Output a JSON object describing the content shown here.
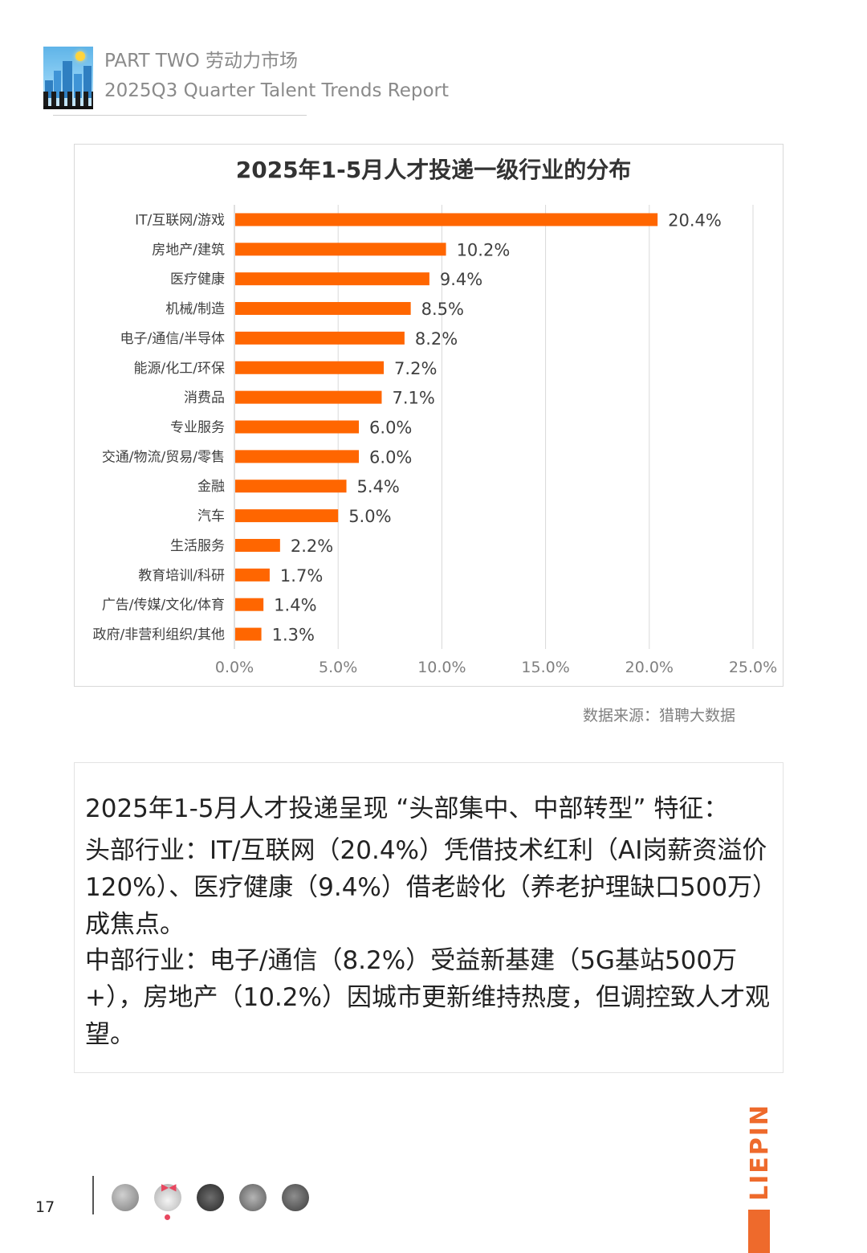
{
  "header": {
    "line1": "PART TWO 劳动力市场",
    "line2": "2025Q3 Quarter Talent Trends Report"
  },
  "chart_data": {
    "type": "bar",
    "orientation": "horizontal",
    "title": "2025年1-5月人才投递一级行业的分布",
    "categories": [
      "IT/互联网/游戏",
      "房地产/建筑",
      "医疗健康",
      "机械/制造",
      "电子/通信/半导体",
      "能源/化工/环保",
      "消费品",
      "专业服务",
      "交通/物流/贸易/零售",
      "金融",
      "汽车",
      "生活服务",
      "教育培训/科研",
      "广告/传媒/文化/体育",
      "政府/非营利组织/其他"
    ],
    "values": [
      20.4,
      10.2,
      9.4,
      8.5,
      8.2,
      7.2,
      7.1,
      6.0,
      6.0,
      5.4,
      5.0,
      2.2,
      1.7,
      1.4,
      1.3
    ],
    "data_labels": [
      "20.4%",
      "10.2%",
      "9.4%",
      "8.5%",
      "8.2%",
      "7.2%",
      "7.1%",
      "6.0%",
      "6.0%",
      "5.4%",
      "5.0%",
      "2.2%",
      "1.7%",
      "1.4%",
      "1.3%"
    ],
    "x_ticks": [
      0,
      5,
      10,
      15,
      20,
      25
    ],
    "x_tick_labels": [
      "0.0%",
      "5.0%",
      "10.0%",
      "15.0%",
      "20.0%",
      "25.0%"
    ],
    "xlim": [
      0,
      25
    ],
    "grid": "vertical",
    "bar_color": "#ff6600",
    "legend": "none"
  },
  "source": "数据来源：猎聘大数据",
  "analysis": {
    "p1": "2025年1-5月人才投递呈现 “头部集中、中部转型” 特征：",
    "p2": "头部行业：IT/互联网（20.4%）凭借技术红利（AI岗薪资溢价120%）、医疗健康（9.4%）借老龄化（养老护理缺口500万）成焦点。",
    "p3": "中部行业：电子/通信（8.2%）受益新基建（5G基站500万+），房地产（10.2%）因城市更新维持热度，但调控致人才观望。"
  },
  "footer": {
    "page_number": "17",
    "brand": "LIEPIN",
    "brand_color": "#ee6a2c"
  }
}
